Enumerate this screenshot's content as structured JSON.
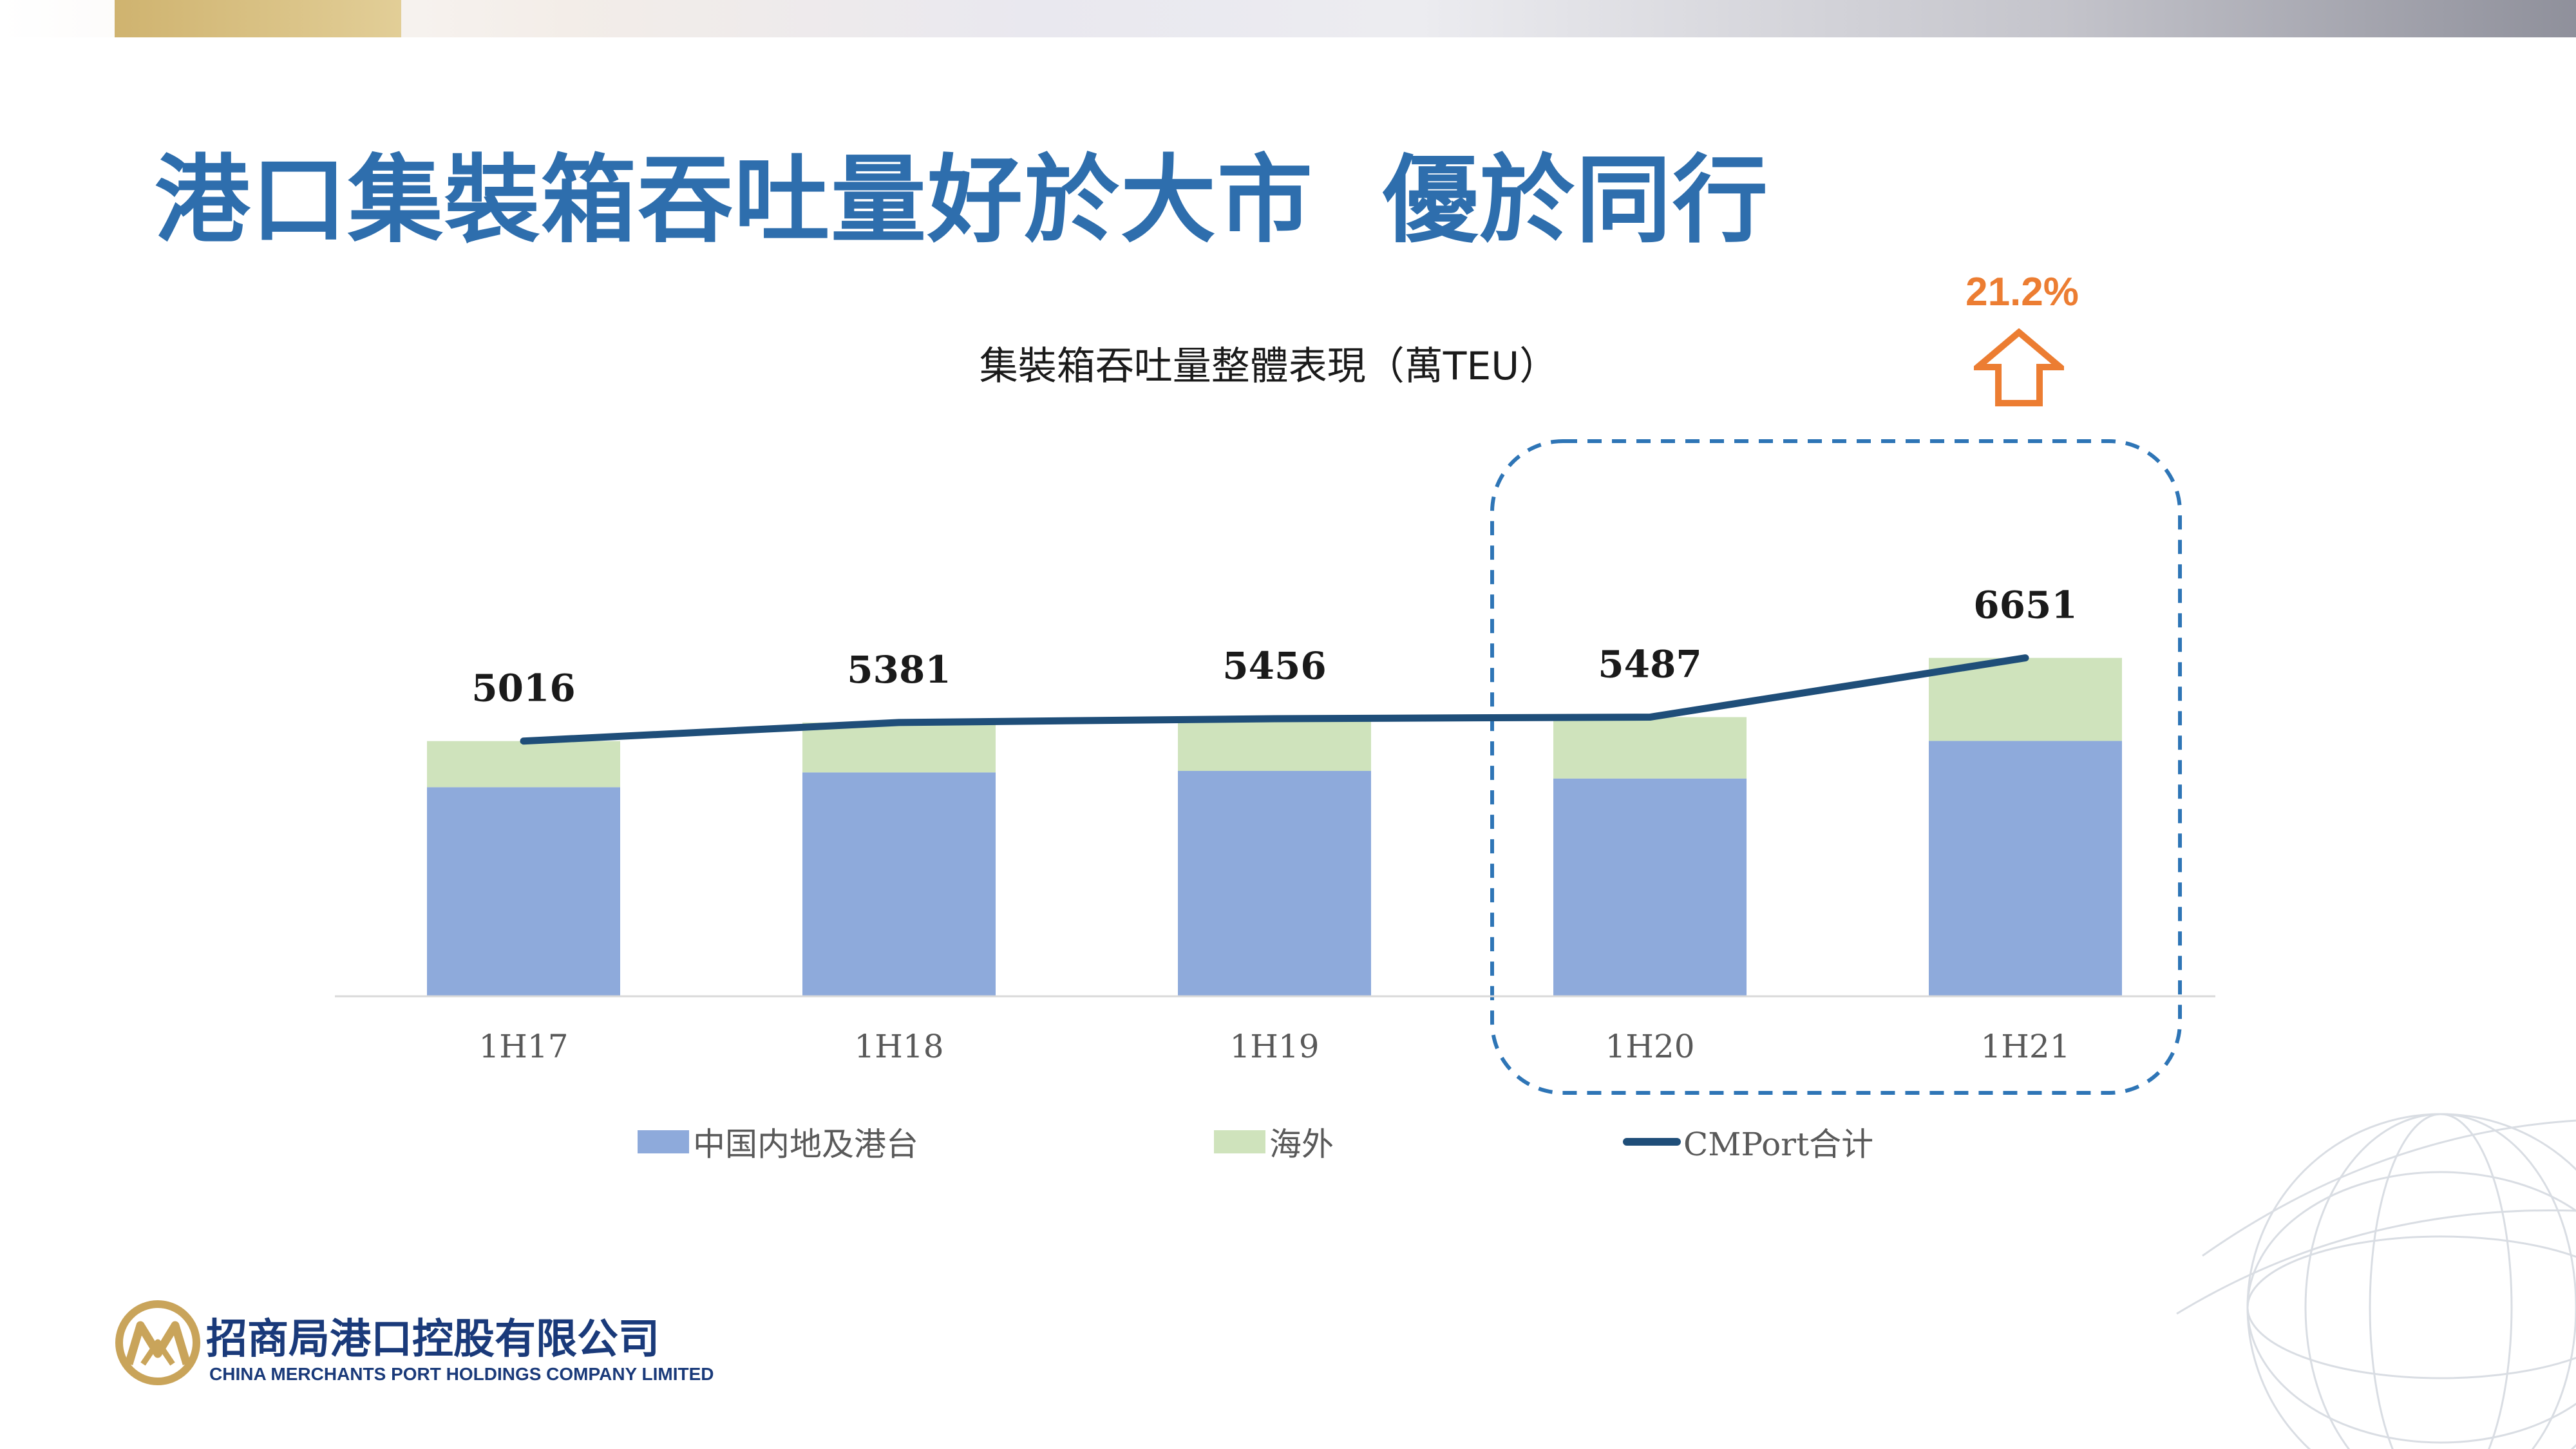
{
  "slide": {
    "title": "港口集裝箱吞吐量好於大市  優於同行"
  },
  "annotation": {
    "growth": "21.2%",
    "growth_color": "#ec7d32",
    "arrow": "up-arrow-outline-icon"
  },
  "colors": {
    "title": "#2e6ead",
    "mainland": "#8eaadb",
    "overseas": "#cfe3bc",
    "total_line": "#1f4e79",
    "highlight_box": "#2e75b6"
  },
  "chart_data": {
    "type": "bar",
    "stacked": true,
    "title": "集裝箱吞吐量整體表現（萬TEU）",
    "categories": [
      "1H17",
      "1H18",
      "1H19",
      "1H20",
      "1H21"
    ],
    "series": [
      {
        "name": "中国内地及港台",
        "type": "bar",
        "color": "#8eaadb",
        "values": [
          4110,
          4400,
          4430,
          4280,
          5020
        ]
      },
      {
        "name": "海外",
        "type": "bar",
        "color": "#cfe3bc",
        "values": [
          906,
          981,
          1026,
          1207,
          1631
        ]
      },
      {
        "name": "CMPort合计",
        "type": "line",
        "color": "#1f4e79",
        "values": [
          5016,
          5381,
          5456,
          5487,
          6651
        ]
      }
    ],
    "ylim": [
      0,
      7000
    ],
    "grid": false,
    "legend": "bottom",
    "highlight": [
      "1H20",
      "1H21"
    ]
  },
  "logo": {
    "mark": "china-merchants-logo-icon",
    "name_cn": "招商局港口控股有限公司",
    "name_en": "CHINA MERCHANTS PORT HOLDINGS COMPANY LIMITED"
  },
  "background": {
    "decoration": "globe-wireframe-icon"
  }
}
